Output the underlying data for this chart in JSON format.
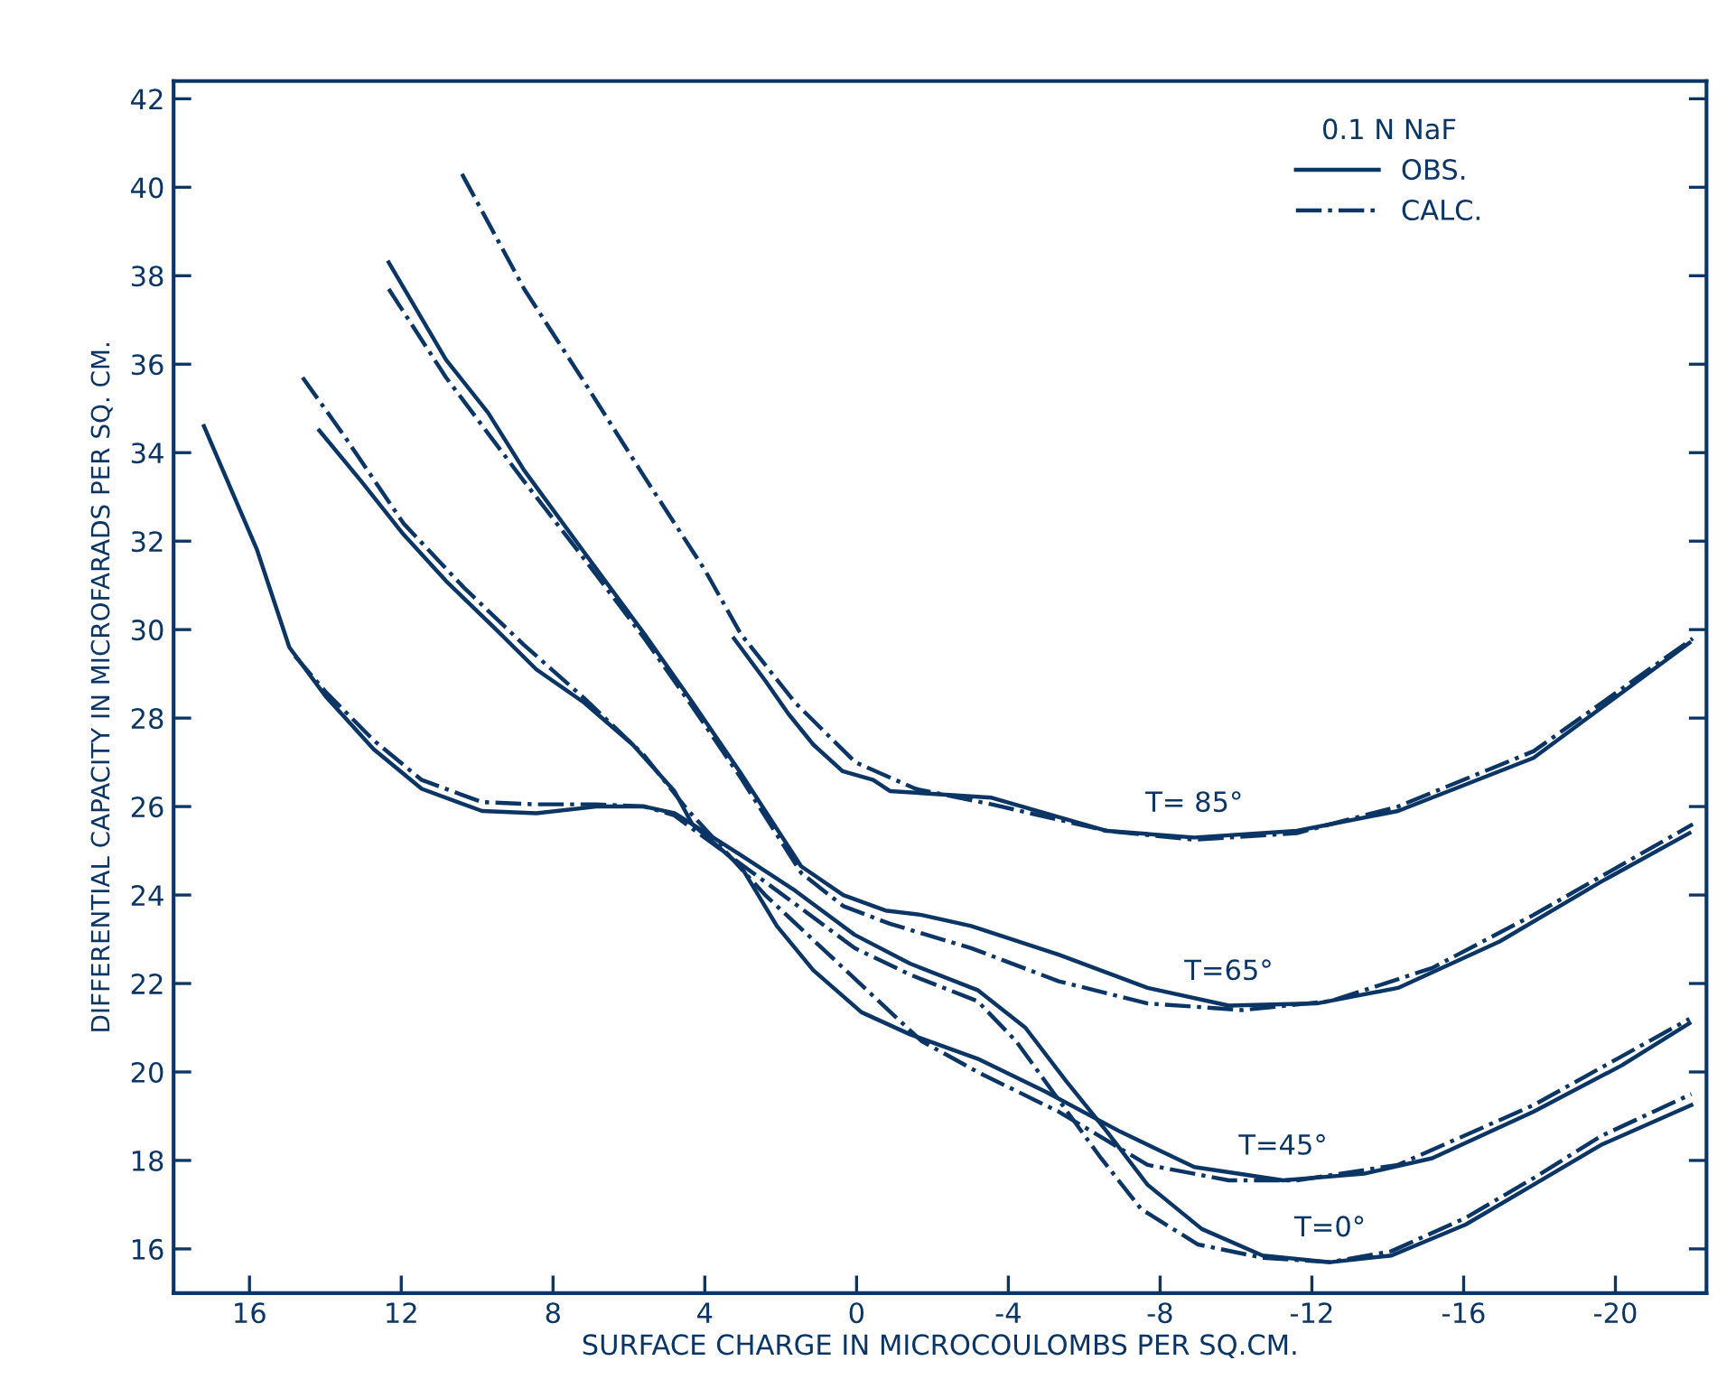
{
  "chart_data": {
    "type": "line",
    "xlabel": "SURFACE CHARGE IN MICROCOULOMBS PER SQ.CM.",
    "ylabel": "DIFFERENTIAL CAPACITY IN MICROFARADS PER SQ. CM.",
    "legend_title": "0.1 N NaF",
    "legend": "top right",
    "grid": false,
    "xlim": [
      18,
      -22.4
    ],
    "ylim": [
      15,
      42.4
    ],
    "xticks": [
      16,
      12,
      8,
      4,
      0,
      -4,
      -8,
      -12,
      -16,
      -20
    ],
    "yticks": [
      16,
      18,
      20,
      22,
      24,
      26,
      28,
      30,
      32,
      34,
      36,
      38,
      40,
      42
    ],
    "annotations": [
      "T=0°",
      "T=45°",
      "T=65°",
      "T= 85°"
    ],
    "series": [
      {
        "name": "OBS.",
        "color": "#0b3564",
        "line_style": "solid",
        "x": [
          17.2,
          15.8,
          14.95,
          14.0,
          12.73,
          11.46,
          9.87,
          8.44,
          6.86,
          5.59,
          4.8,
          4.33,
          3.05,
          1.62,
          0.05,
          -1.41,
          -3.19,
          -4.45,
          -5.52,
          -6.6,
          -7.67,
          -9.1,
          -10.7,
          -12.48,
          -14.1,
          -16.05,
          -17.84,
          -19.62,
          -22.0
        ],
        "values": [
          34.6,
          31.8,
          29.6,
          28.5,
          27.3,
          26.4,
          25.9,
          25.85,
          26.0,
          26.0,
          25.85,
          25.6,
          24.9,
          24.1,
          23.1,
          22.45,
          21.85,
          21.0,
          19.8,
          18.65,
          17.45,
          16.45,
          15.85,
          15.7,
          15.85,
          16.55,
          17.45,
          18.35,
          19.25
        ]
      },
      {
        "name": "CALC.",
        "color": "#0b3564",
        "line_style": "dashdot",
        "x": [
          14.8,
          14.0,
          12.73,
          11.46,
          9.87,
          8.44,
          6.86,
          5.59,
          4.8,
          4.33,
          3.05,
          1.62,
          0.05,
          -1.41,
          -3.19,
          -4.2,
          -5.3,
          -6.4,
          -7.5,
          -9.0,
          -10.7,
          -12.48,
          -14.1,
          -16.05,
          -17.84,
          -19.62,
          -22.0
        ],
        "values": [
          29.4,
          28.6,
          27.5,
          26.6,
          26.1,
          26.05,
          26.05,
          26.0,
          25.8,
          25.5,
          24.7,
          23.8,
          22.8,
          22.2,
          21.6,
          20.7,
          19.4,
          18.1,
          16.9,
          16.1,
          15.8,
          15.7,
          15.95,
          16.7,
          17.6,
          18.55,
          19.5
        ]
      },
      {
        "color": "#0b3564",
        "line_style": "solid",
        "x": [
          14.16,
          13.05,
          11.94,
          10.82,
          9.56,
          8.44,
          7.18,
          5.9,
          4.8,
          4.33,
          3.05,
          2.1,
          1.14,
          -0.13,
          -1.41,
          -3.19,
          -4.99,
          -6.95,
          -8.9,
          -11.24,
          -13.38,
          -15.17,
          -17.84,
          -20.17,
          -21.95
        ],
        "values": [
          34.5,
          33.35,
          32.15,
          31.1,
          30.05,
          29.1,
          28.35,
          27.4,
          26.35,
          25.6,
          24.65,
          23.3,
          22.3,
          21.35,
          20.85,
          20.3,
          19.55,
          18.65,
          17.85,
          17.55,
          17.7,
          18.05,
          19.1,
          20.15,
          21.1
        ]
      },
      {
        "color": "#0b3564",
        "line_style": "dashdot",
        "x": [
          14.6,
          13.52,
          11.94,
          10.35,
          8.76,
          7.18,
          5.59,
          4.48,
          2.41,
          -1.71,
          -3.19,
          -5.33,
          -7.67,
          -9.81,
          -11.6,
          -14.27,
          -17.84,
          -21.95
        ],
        "values": [
          35.7,
          34.4,
          32.4,
          30.95,
          29.65,
          28.45,
          27.15,
          25.95,
          24.0,
          20.7,
          20.0,
          19.1,
          17.9,
          17.55,
          17.55,
          17.9,
          19.25,
          21.2
        ]
      },
      {
        "color": "#0b3564",
        "line_style": "solid",
        "x": [
          12.33,
          10.82,
          9.71,
          8.76,
          7.18,
          5.59,
          4.32,
          3.05,
          1.46,
          0.35,
          -0.76,
          -1.71,
          -3.02,
          -5.33,
          -7.67,
          -9.81,
          -12.13,
          -14.27,
          -16.95,
          -19.62,
          -21.95
        ],
        "values": [
          38.3,
          36.1,
          34.9,
          33.6,
          31.75,
          29.9,
          28.35,
          26.75,
          24.65,
          24.0,
          23.65,
          23.55,
          23.3,
          22.65,
          21.9,
          21.5,
          21.55,
          21.9,
          22.95,
          24.3,
          25.4
        ]
      },
      {
        "color": "#0b3564",
        "line_style": "dashdot",
        "x": [
          12.33,
          10.82,
          8.76,
          7.18,
          5.59,
          4.32,
          3.05,
          1.46,
          0.35,
          -0.88,
          -3.02,
          -5.33,
          -7.67,
          -10.17,
          -12.49,
          -15.17,
          -17.84,
          -22.04
        ],
        "values": [
          37.7,
          35.7,
          33.35,
          31.6,
          29.8,
          28.25,
          26.65,
          24.5,
          23.75,
          23.35,
          22.8,
          22.05,
          21.55,
          21.4,
          21.6,
          22.35,
          23.55,
          25.6
        ]
      },
      {
        "color": "#0b3564",
        "line_style": "solid",
        "x": [
          3.23,
          2.41,
          1.8,
          1.14,
          0.37,
          -0.44,
          -0.88,
          -3.56,
          -6.6,
          -8.9,
          -11.6,
          -14.27,
          -17.84,
          -21.95
        ],
        "values": [
          29.8,
          28.85,
          28.1,
          27.4,
          26.8,
          26.6,
          26.35,
          26.2,
          25.45,
          25.3,
          25.45,
          25.9,
          27.1,
          29.7
        ]
      },
      {
        "color": "#0b3564",
        "line_style": "dashdot",
        "x": [
          10.4,
          8.76,
          7.18,
          5.59,
          4.0,
          3.05,
          1.62,
          0.03,
          -1.56,
          -3.56,
          -6.6,
          -8.9,
          -11.6,
          -14.27,
          -17.84,
          -22.04
        ],
        "values": [
          40.3,
          37.7,
          35.6,
          33.45,
          31.35,
          29.9,
          28.35,
          27.0,
          26.4,
          26.05,
          25.45,
          25.25,
          25.4,
          26.0,
          27.25,
          29.8
        ]
      }
    ]
  }
}
